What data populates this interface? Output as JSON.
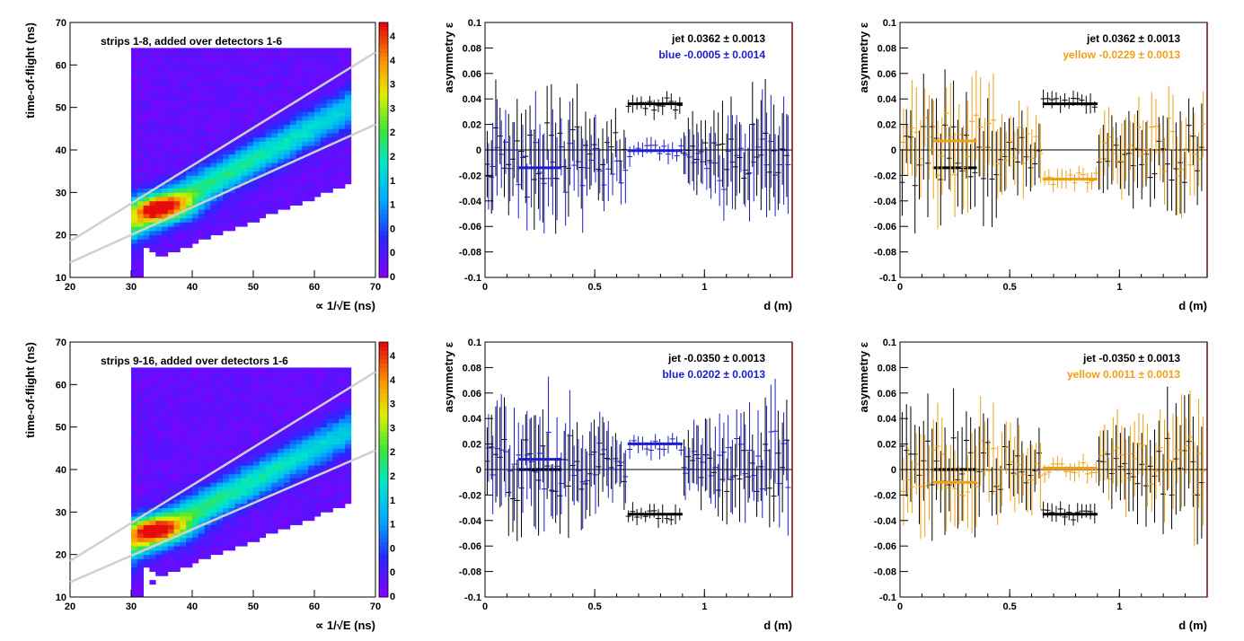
{
  "chart_data": [
    {
      "type": "heatmap",
      "panel": "top-left",
      "title": "strips 1-8, added over detectors 1-6",
      "xlabel": "∝ 1/√E (ns)",
      "ylabel": "time-of-flight (ns)",
      "xlim": [
        20,
        70
      ],
      "ylim": [
        10,
        70
      ],
      "xticks": [
        "20",
        "30",
        "40",
        "50",
        "60",
        "70"
      ],
      "yticks": [
        "10",
        "20",
        "30",
        "40",
        "50",
        "60",
        "70"
      ],
      "band_lines": [
        {
          "name": "upper",
          "x": [
            20,
            70
          ],
          "y": [
            18.5,
            63
          ]
        },
        {
          "name": "lower",
          "x": [
            20,
            70
          ],
          "y": [
            13.5,
            46
          ]
        }
      ],
      "peak": {
        "x": 34,
        "y": 26
      },
      "color_scale_ticks": [
        "4",
        "4",
        "3",
        "3",
        "2",
        "2",
        "1",
        "1",
        "0",
        "0",
        "0"
      ]
    },
    {
      "type": "scatter",
      "panel": "top-middle",
      "xlabel": "d (m)",
      "ylabel": "asymmetry ε",
      "xlim": [
        0,
        1.4
      ],
      "ylim": [
        -0.1,
        0.1
      ],
      "xticks": [
        "0",
        "0.5",
        "1"
      ],
      "yticks": [
        "-0.1",
        "-0.08",
        "-0.06",
        "-0.04",
        "-0.02",
        "0",
        "0.02",
        "0.04",
        "0.06",
        "0.08",
        "0.1"
      ],
      "legend": [
        {
          "label": "jet  0.0362 ± 0.0013",
          "color": "#000000"
        },
        {
          "label": "blue -0.0005 ± 0.0014",
          "color": "#1c1cd0"
        }
      ],
      "series": [
        {
          "color": "#000000",
          "seed": 11,
          "flat": [
            {
              "x": [
                0.65,
                0.9
              ],
              "y": 0.0362
            }
          ],
          "inner": 0.036,
          "outer": 0.0,
          "inner_range": [
            0.65,
            0.9
          ],
          "shift": 0.0
        },
        {
          "color": "#1c1cd0",
          "seed": 23,
          "flat": [
            {
              "x": [
                0.15,
                0.35
              ],
              "y": -0.014
            },
            {
              "x": [
                0.65,
                0.9
              ],
              "y": -0.0005
            }
          ],
          "inner": -0.001,
          "outer": -0.014,
          "inner_range": [
            0.65,
            0.9
          ],
          "shift": 0.006
        }
      ]
    },
    {
      "type": "scatter",
      "panel": "top-right",
      "xlabel": "d (m)",
      "ylabel": "asymmetry ε",
      "xlim": [
        0,
        1.4
      ],
      "ylim": [
        -0.1,
        0.1
      ],
      "xticks": [
        "0",
        "0.5",
        "1"
      ],
      "yticks": [
        "-0.1",
        "-0.08",
        "-0.06",
        "-0.04",
        "-0.02",
        "0",
        "0.02",
        "0.04",
        "0.06",
        "0.08",
        "0.1"
      ],
      "legend": [
        {
          "label": "jet  0.0362 ± 0.0013",
          "color": "#000000"
        },
        {
          "label": "yellow -0.0229 ± 0.0013",
          "color": "#f0a012"
        }
      ],
      "series": [
        {
          "color": "#000000",
          "seed": 31,
          "flat": [
            {
              "x": [
                0.15,
                0.35
              ],
              "y": -0.014
            },
            {
              "x": [
                0.65,
                0.9
              ],
              "y": 0.0362
            }
          ],
          "inner": 0.036,
          "outer": -0.005,
          "inner_range": [
            0.65,
            0.9
          ],
          "shift": 0.0
        },
        {
          "color": "#f0a012",
          "seed": 47,
          "flat": [
            {
              "x": [
                0.15,
                0.35
              ],
              "y": 0.007
            },
            {
              "x": [
                0.65,
                0.9
              ],
              "y": -0.0229
            }
          ],
          "inner": -0.023,
          "outer": 0.004,
          "inner_range": [
            0.65,
            0.9
          ],
          "shift": 0.006
        }
      ]
    },
    {
      "type": "heatmap",
      "panel": "bottom-left",
      "title": "strips 9-16, added over detectors 1-6",
      "xlabel": "∝ 1/√E (ns)",
      "ylabel": "time-of-flight (ns)",
      "xlim": [
        20,
        70
      ],
      "ylim": [
        10,
        70
      ],
      "xticks": [
        "20",
        "30",
        "40",
        "50",
        "60",
        "70"
      ],
      "yticks": [
        "10",
        "20",
        "30",
        "40",
        "50",
        "60",
        "70"
      ],
      "band_lines": [
        {
          "name": "upper",
          "x": [
            20,
            70
          ],
          "y": [
            18.5,
            63
          ]
        },
        {
          "name": "lower",
          "x": [
            20,
            70
          ],
          "y": [
            13.5,
            44.5
          ]
        }
      ],
      "peak": {
        "x": 33,
        "y": 25.5
      },
      "color_scale_ticks": [
        "4",
        "4",
        "3",
        "3",
        "2",
        "2",
        "1",
        "1",
        "0",
        "0",
        "0"
      ]
    },
    {
      "type": "scatter",
      "panel": "bottom-middle",
      "xlabel": "d (m)",
      "ylabel": "asymmetry ε",
      "xlim": [
        0,
        1.4
      ],
      "ylim": [
        -0.1,
        0.1
      ],
      "xticks": [
        "0",
        "0.5",
        "1"
      ],
      "yticks": [
        "-0.1",
        "-0.08",
        "-0.06",
        "-0.04",
        "-0.02",
        "0",
        "0.02",
        "0.04",
        "0.06",
        "0.08",
        "0.1"
      ],
      "legend": [
        {
          "label": "jet -0.0350 ± 0.0013",
          "color": "#000000"
        },
        {
          "label": "blue  0.0202 ± 0.0013",
          "color": "#1c1cd0"
        }
      ],
      "series": [
        {
          "color": "#000000",
          "seed": 59,
          "flat": [
            {
              "x": [
                0.15,
                0.35
              ],
              "y": 0.0
            },
            {
              "x": [
                0.65,
                0.9
              ],
              "y": -0.035
            }
          ],
          "inner": -0.035,
          "outer": 0.0,
          "inner_range": [
            0.65,
            0.9
          ],
          "shift": 0.0
        },
        {
          "color": "#1c1cd0",
          "seed": 71,
          "flat": [
            {
              "x": [
                0.15,
                0.35
              ],
              "y": 0.008
            },
            {
              "x": [
                0.65,
                0.9
              ],
              "y": 0.0202
            }
          ],
          "inner": 0.02,
          "outer": 0.006,
          "inner_range": [
            0.65,
            0.9
          ],
          "shift": 0.006
        }
      ]
    },
    {
      "type": "scatter",
      "panel": "bottom-right",
      "xlabel": "d (m)",
      "ylabel": "asymmetry ε",
      "xlim": [
        0,
        1.4
      ],
      "ylim": [
        -0.1,
        0.1
      ],
      "xticks": [
        "0",
        "0.5",
        "1"
      ],
      "yticks": [
        "-0.1",
        "-0.08",
        "-0.06",
        "-0.04",
        "-0.02",
        "0",
        "0.02",
        "0.04",
        "0.06",
        "0.08",
        "0.1"
      ],
      "legend": [
        {
          "label": "jet -0.0350 ± 0.0013",
          "color": "#000000"
        },
        {
          "label": "yellow  0.0011 ± 0.0013",
          "color": "#f0a012"
        }
      ],
      "series": [
        {
          "color": "#000000",
          "seed": 83,
          "flat": [
            {
              "x": [
                0.15,
                0.35
              ],
              "y": 0.0
            },
            {
              "x": [
                0.65,
                0.9
              ],
              "y": -0.035
            }
          ],
          "inner": -0.035,
          "outer": 0.003,
          "inner_range": [
            0.65,
            0.9
          ],
          "shift": 0.0
        },
        {
          "color": "#f0a012",
          "seed": 97,
          "flat": [
            {
              "x": [
                0.15,
                0.35
              ],
              "y": -0.01
            },
            {
              "x": [
                0.65,
                0.9
              ],
              "y": 0.0011
            }
          ],
          "inner": 0.001,
          "outer": 0.004,
          "inner_range": [
            0.65,
            0.9
          ],
          "shift": 0.006
        }
      ]
    }
  ]
}
